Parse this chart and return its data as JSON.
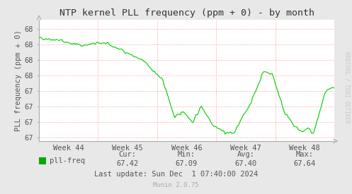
{
  "title": "NTP kernel PLL frequency (ppm + 0) - by month",
  "ylabel": "PLL frequency (ppm + 0)",
  "line_color": "#00cc00",
  "fig_bg_color": "#e8e8e8",
  "plot_bg_color": "#ffffff",
  "grid_color": "#ff9999",
  "text_color": "#555555",
  "legend_label": "pll-freq",
  "legend_color": "#00aa00",
  "cur": "67.42",
  "min": "67.09",
  "avg": "67.40",
  "max": "67.64",
  "last_update": "Last update: Sun Dec  1 07:40:00 2024",
  "watermark": "Munin 2.0.75",
  "rrdtool_label": "RRDTOOL / TOBI OETIKER",
  "x_tick_labels": [
    "Week 44",
    "Week 45",
    "Week 46",
    "Week 47",
    "Week 48"
  ],
  "ylim_min": 66.95,
  "ylim_max": 68.52,
  "y_ticks": [
    67.0,
    67.2,
    67.4,
    67.6,
    67.8,
    68.0,
    68.2,
    68.4
  ],
  "y_tick_labels": [
    "67",
    "67",
    "67",
    "67",
    "68",
    "68",
    "68",
    "68"
  ]
}
